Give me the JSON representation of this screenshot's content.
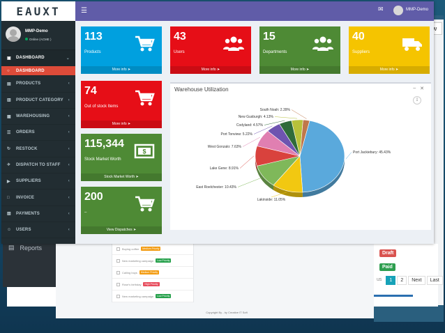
{
  "brand": {
    "logo_text": "EAUXT"
  },
  "topbar": {
    "user_name": "MMP-Demo"
  },
  "sidebar": {
    "user_name": "MMP-Demo",
    "user_status": "Online (ACME )",
    "items": [
      {
        "label": "DASHBOARD",
        "icon": "dashboard-icon",
        "state": "header"
      },
      {
        "label": "DASHBOARD",
        "icon": "circle-icon",
        "state": "active"
      },
      {
        "label": "PRODUCTS",
        "icon": "cart-icon"
      },
      {
        "label": "PRODUCT CATEGORY",
        "icon": "category-icon"
      },
      {
        "label": "WAREHOUSING",
        "icon": "warehouse-icon"
      },
      {
        "label": "ORDERS",
        "icon": "orders-icon"
      },
      {
        "label": "RESTOCK",
        "icon": "restock-icon"
      },
      {
        "label": "DISPATCH TO STAFF",
        "icon": "dispatch-icon"
      },
      {
        "label": "SUPPLIERS",
        "icon": "truck-icon"
      },
      {
        "label": "INVOICE",
        "icon": "invoice-icon"
      },
      {
        "label": "PAYMENTS",
        "icon": "payments-icon"
      },
      {
        "label": "USERS",
        "icon": "users-icon"
      }
    ]
  },
  "boxes": [
    {
      "value": "113",
      "label": "Products",
      "more": "More info",
      "color": "#00a0df",
      "icon": "cart-icon"
    },
    {
      "value": "43",
      "label": "Users",
      "more": "More info",
      "color": "#e60e17",
      "icon": "users-icon"
    },
    {
      "value": "15",
      "label": "Departments",
      "more": "More info",
      "color": "#4e8a35",
      "icon": "users-icon"
    },
    {
      "value": "40",
      "label": "Suppliers",
      "more": "More info",
      "color": "#f5c400",
      "icon": "truck-icon"
    },
    {
      "value": "74",
      "label": "Out of stock Items",
      "more": "More info",
      "color": "#e60e17",
      "icon": "cart-icon"
    },
    {
      "value": "115,344",
      "label": "Stock Market Worth",
      "more": "Stock Market Worth",
      "color": "#4e8a35",
      "icon": "money-icon"
    },
    {
      "value": "200",
      "label": "–",
      "more": "View Dispatches",
      "color": "#4e8a35",
      "icon": "cart-icon"
    }
  ],
  "chart_panel": {
    "title": "Warehouse Utilization"
  },
  "chart_data": {
    "type": "pie",
    "title": "Warehouse Utilization",
    "slices": [
      {
        "name": "Port Jackiebury",
        "label": "Port Jackiebury: 45.43%",
        "value": 45.43,
        "color": "#5aa9dc"
      },
      {
        "name": "Lakinside",
        "label": "Lakinside: 11.05%",
        "value": 11.05,
        "color": "#f2c811"
      },
      {
        "name": "East Roelchester",
        "label": "East Roelchester: 10.43%",
        "value": 10.43,
        "color": "#7fb85a"
      },
      {
        "name": "Lake Gene",
        "label": "Lake Gene: 8.91%",
        "value": 8.91,
        "color": "#d9423d"
      },
      {
        "name": "West Gonzalo",
        "label": "West Gonzalo: 7.63%",
        "value": 7.63,
        "color": "#e07fb1"
      },
      {
        "name": "Port Tonview",
        "label": "Port Tonview: 5.22%",
        "value": 5.22,
        "color": "#6e54b0"
      },
      {
        "name": "Codyland",
        "label": "Codyland: 4.57%",
        "value": 4.57,
        "color": "#2f6b3a"
      },
      {
        "name": "New Gusburgh",
        "label": "New Gusburgh: 4.13%",
        "value": 4.13,
        "color": "#b7c13a"
      },
      {
        "name": "South Noah",
        "label": "South Noah: 2.39%",
        "value": 2.39,
        "color": "#c0774a"
      }
    ]
  },
  "todo": {
    "items": [
      {
        "text": "Buying coffee",
        "priority": "Medium Priority",
        "pclass": "pr-med"
      },
      {
        "text": "New marketing campaign",
        "priority": "Low Priority",
        "pclass": "pr-low"
      },
      {
        "text": "Calling boys",
        "priority": "Medium Priority",
        "pclass": "pr-med"
      },
      {
        "text": "Rose's birthday",
        "priority": "High Priority",
        "pclass": "pr-high"
      },
      {
        "text": "New marketing campaign",
        "priority": "Low Priority",
        "pclass": "pr-low"
      }
    ]
  },
  "footer": {
    "copyright": "Copyright By - by Creative IT Soft"
  },
  "background": {
    "reports_label": "Reports",
    "badge_draft": "Draft",
    "badge_paid": "Paid",
    "pager": [
      "us",
      "1",
      "2",
      "Next",
      "Last"
    ],
    "right_btn": "w"
  }
}
